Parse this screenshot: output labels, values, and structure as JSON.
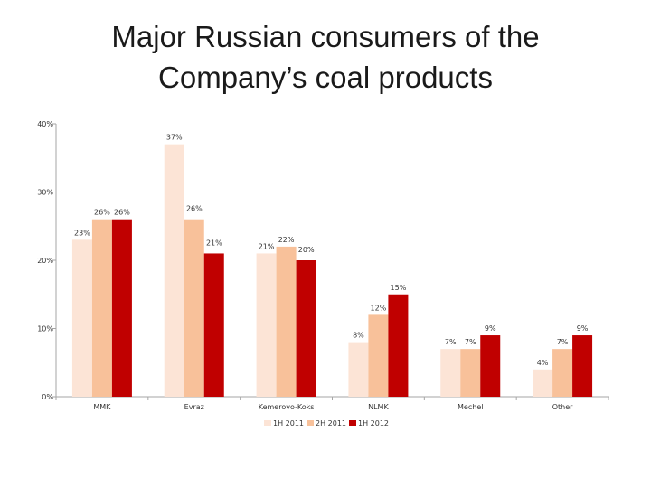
{
  "title_lines": [
    "Major Russian consumers of the",
    "Company’s coal products"
  ],
  "chart_data": {
    "type": "bar",
    "title": "Major Russian consumers of the Company’s coal products",
    "categories": [
      "MMK",
      "Evraz",
      "Kemerovo-Koks",
      "NLMK",
      "Mechel",
      "Other"
    ],
    "series": [
      {
        "name": "1H 2011",
        "color": "#fce4d6",
        "values": [
          23,
          37,
          21,
          8,
          7,
          4
        ]
      },
      {
        "name": "2H 2011",
        "color": "#f8c19a",
        "values": [
          26,
          26,
          22,
          12,
          7,
          7
        ]
      },
      {
        "name": "1H 2012",
        "color": "#c00000",
        "values": [
          26,
          21,
          20,
          15,
          9,
          9
        ]
      }
    ],
    "value_labels": [
      [
        "23%",
        "37%",
        "21%",
        "8%",
        "7%",
        "4%"
      ],
      [
        "26%",
        "26%",
        "22%",
        "12%",
        "7%",
        "7%"
      ],
      [
        "26%",
        "21%",
        "20%",
        "15%",
        "9%",
        "9%"
      ]
    ],
    "ylim": [
      0,
      40
    ],
    "yticks": [
      0,
      10,
      20,
      30,
      40
    ],
    "ytick_labels": [
      "0%",
      "10%",
      "20%",
      "30%",
      "40%"
    ],
    "xlabel": "",
    "ylabel": "",
    "grid": false,
    "legend_position": "bottom"
  }
}
